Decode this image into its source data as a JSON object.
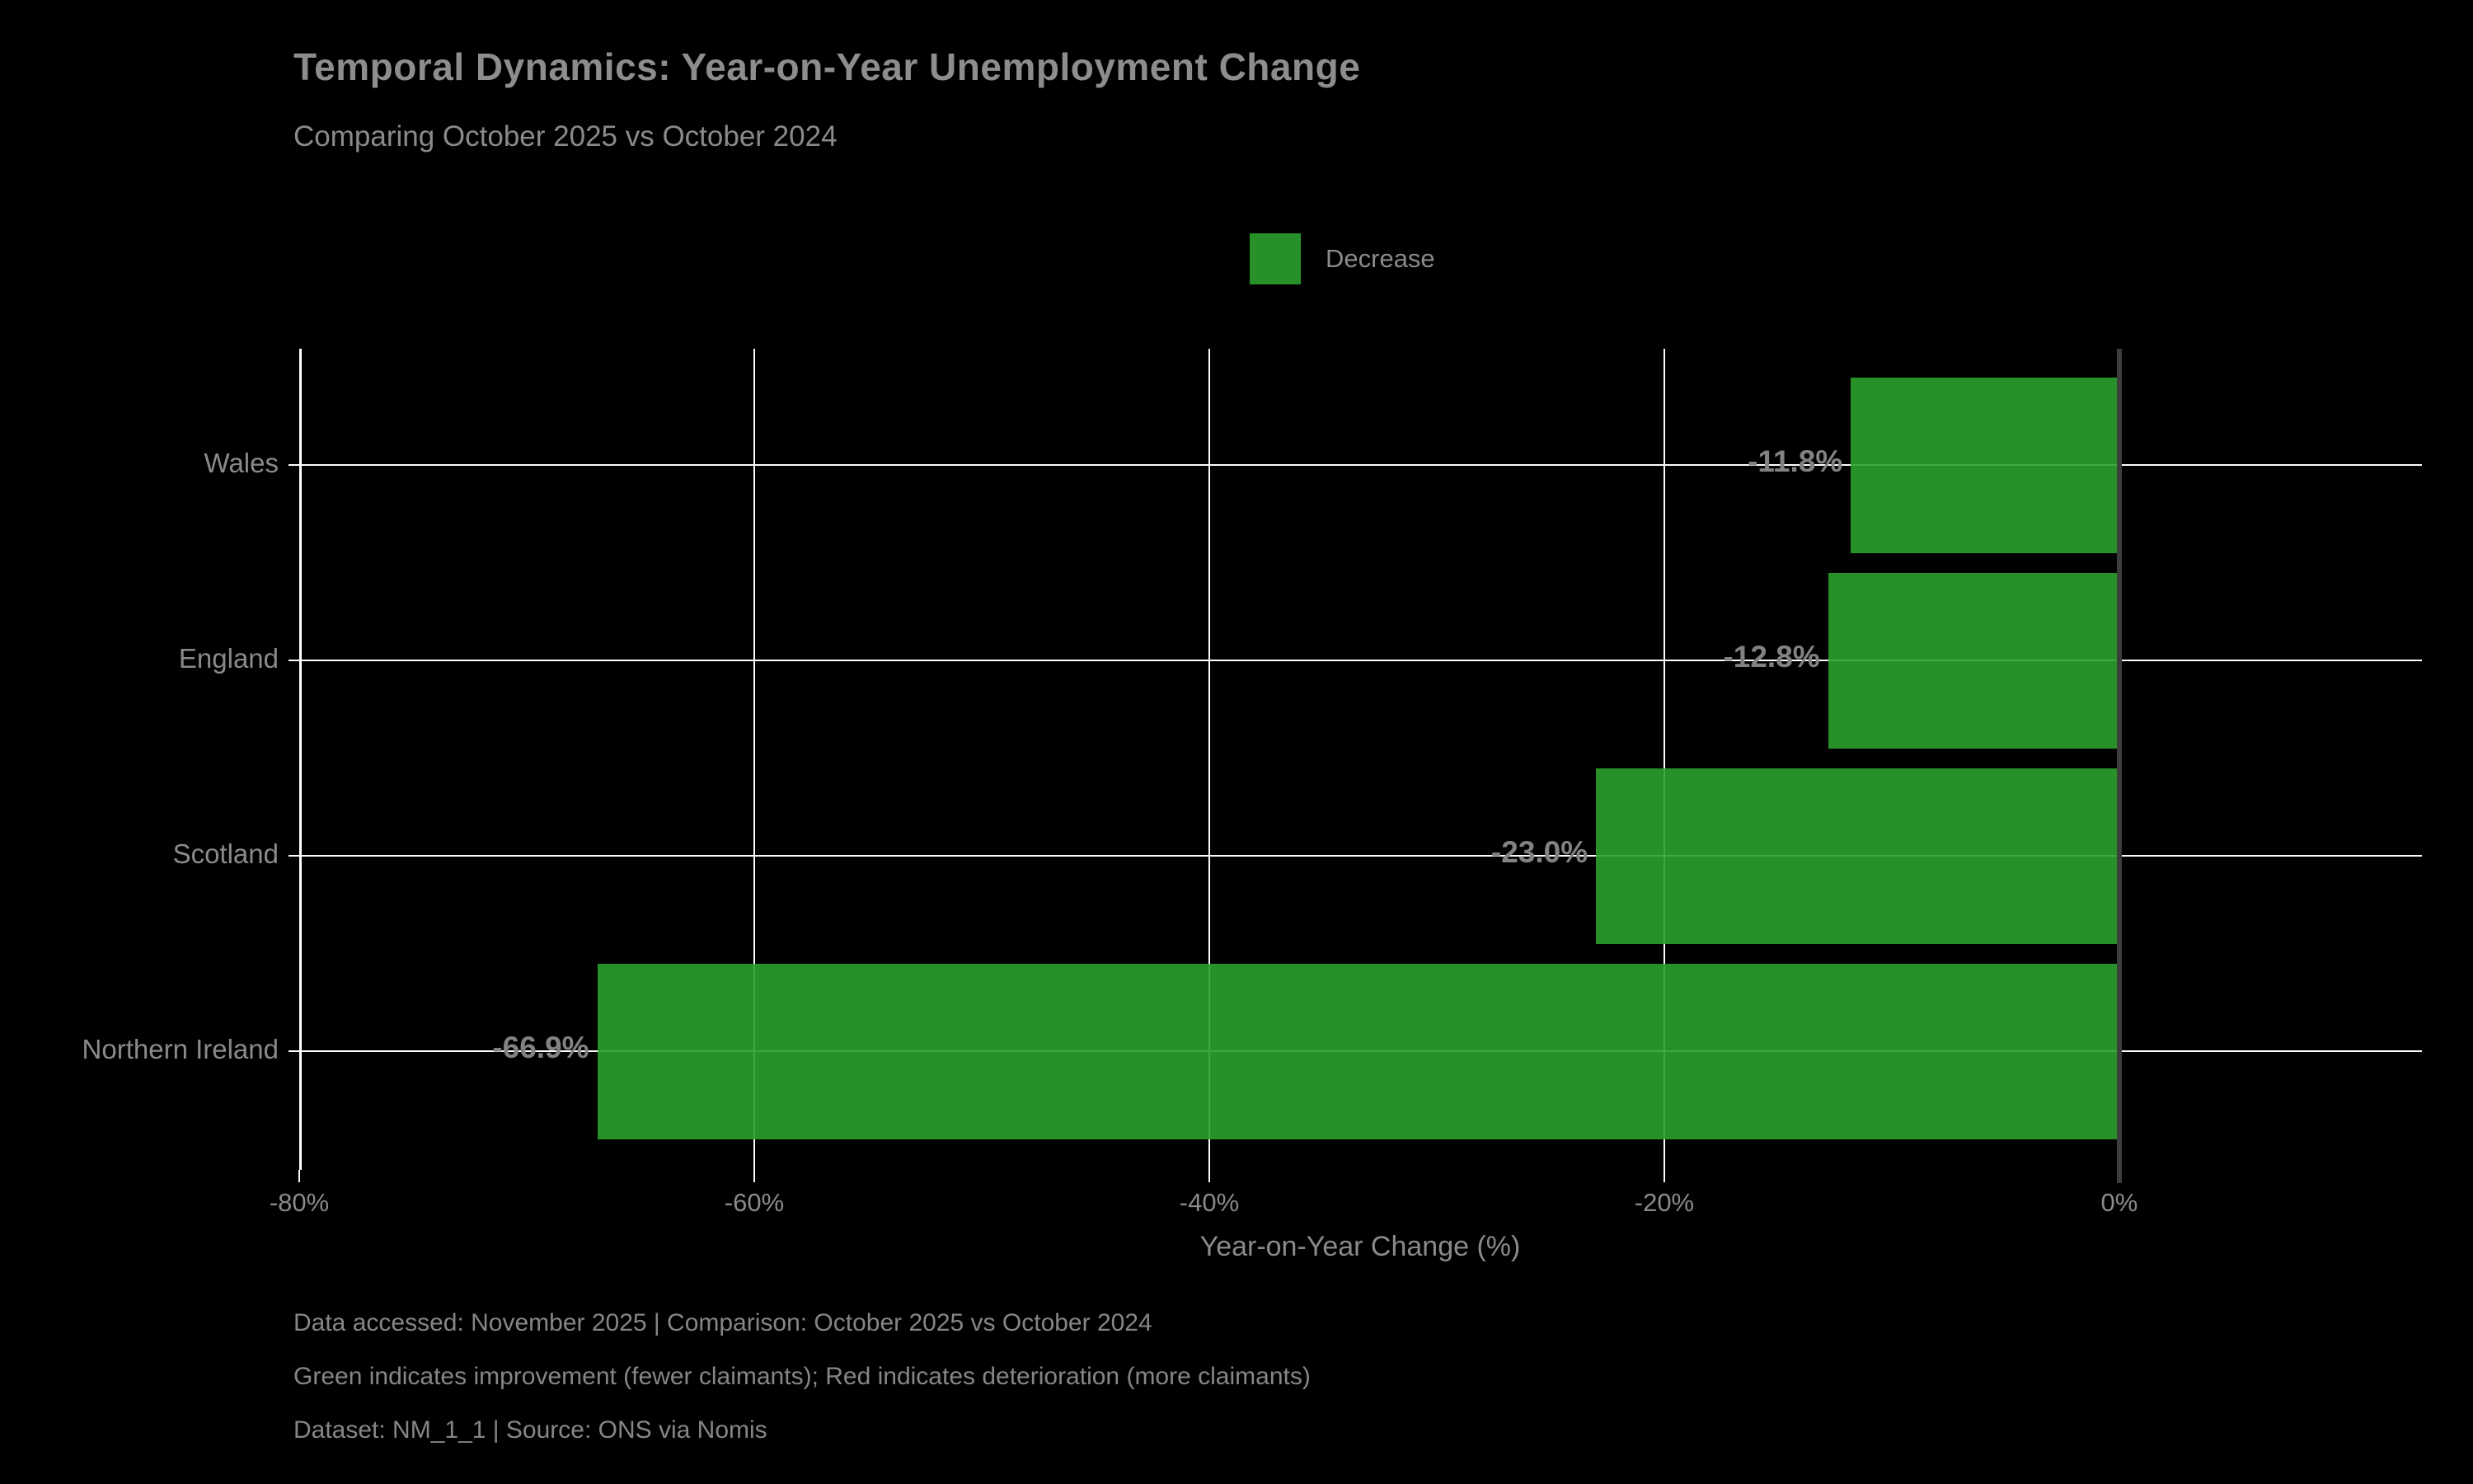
{
  "header": {
    "title": "Temporal Dynamics: Year-on-Year Unemployment Change",
    "subtitle": "Comparing October 2025 vs October 2024"
  },
  "legend": {
    "label": "Decrease",
    "color": "#2ca02c"
  },
  "chart_data": {
    "type": "bar",
    "orientation": "horizontal",
    "categories": [
      "Wales",
      "England",
      "Scotland",
      "Northern Ireland"
    ],
    "values": [
      -11.8,
      -12.8,
      -23.0,
      -66.9
    ],
    "bar_labels": [
      "-11.8%",
      "-12.8%",
      "-23.0%",
      "-66.9%"
    ],
    "bar_color": "#2ca02c",
    "series_name": "Decrease",
    "title": "Temporal Dynamics: Year-on-Year Unemployment Change",
    "subtitle": "Comparing October 2025 vs October 2024",
    "xlabel": "Year-on-Year Change (%)",
    "ylabel": "",
    "xlim": [
      -80,
      13.3
    ],
    "xticks": [
      -80,
      -60,
      -40,
      -20,
      0
    ],
    "xtick_labels": [
      "-80%",
      "-60%",
      "-40%",
      "-20%",
      "0%"
    ],
    "grid": true,
    "grid_color": "#ffffff",
    "zero_line_color": "#3d3d3d",
    "background_color": "#000000",
    "text_color": "#8a8a8a",
    "legend_position": "upper center"
  },
  "footer": {
    "line1": "Data accessed: November 2025 | Comparison: October 2025 vs October 2024",
    "line2": "Green indicates improvement (fewer claimants); Red indicates deterioration (more claimants)",
    "line3": "Dataset: NM_1_1 | Source: ONS via Nomis"
  }
}
